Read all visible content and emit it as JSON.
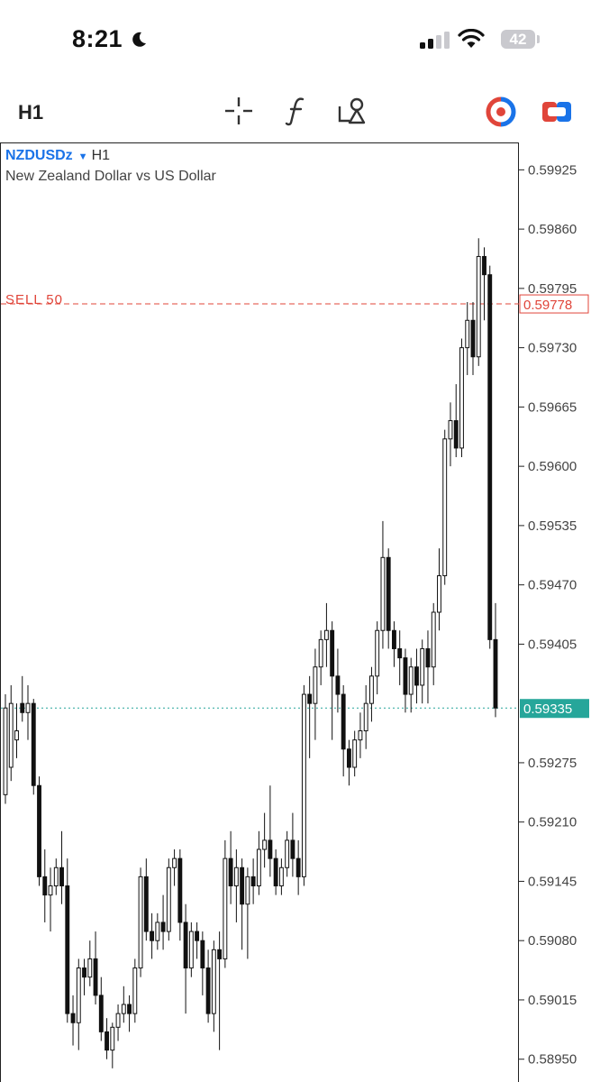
{
  "status_bar": {
    "time": "8:21",
    "battery": "42"
  },
  "toolbar": {
    "timeframe": "H1"
  },
  "chart_header": {
    "symbol": "NZDUSDz",
    "period": "H1",
    "description": "New Zealand Dollar vs US Dollar"
  },
  "order_line": {
    "label": "SELL 50",
    "price": "0.59778"
  },
  "current_price": "0.59335",
  "colors": {
    "sell_line": "#e0453a",
    "bid_line": "#26a69a",
    "symbol": "#1a73e8"
  },
  "chart_data": {
    "type": "candlestick",
    "title": "",
    "xlabel": "",
    "ylabel": "",
    "ylim": [
      0.58925,
      0.59955
    ],
    "y_ticks": [
      "0.59925",
      "0.59860",
      "0.59795",
      "0.59730",
      "0.59665",
      "0.59600",
      "0.59535",
      "0.59470",
      "0.59405",
      "0.59275",
      "0.59210",
      "0.59145",
      "0.59080",
      "0.59015",
      "0.58950"
    ],
    "grid": false,
    "horizontal_lines": [
      {
        "name": "SELL 50",
        "value": 0.59778,
        "style": "dashed"
      },
      {
        "name": "bid",
        "value": 0.59335,
        "style": "dotted"
      }
    ],
    "candles": [
      [
        0.5924,
        0.59335,
        0.5923,
        0.5935
      ],
      [
        0.5927,
        0.5934,
        0.59255,
        0.5936
      ],
      [
        0.593,
        0.5931,
        0.5928,
        0.5934
      ],
      [
        0.5934,
        0.5933,
        0.5932,
        0.5937
      ],
      [
        0.5933,
        0.5934,
        0.593,
        0.5936
      ],
      [
        0.5934,
        0.5925,
        0.5924,
        0.59345
      ],
      [
        0.5925,
        0.5915,
        0.5914,
        0.5926
      ],
      [
        0.5915,
        0.5913,
        0.591,
        0.5918
      ],
      [
        0.5913,
        0.5914,
        0.5909,
        0.5916
      ],
      [
        0.5914,
        0.5916,
        0.5913,
        0.5917
      ],
      [
        0.5916,
        0.5914,
        0.5912,
        0.592
      ],
      [
        0.5914,
        0.59,
        0.5899,
        0.5917
      ],
      [
        0.59,
        0.5899,
        0.58965,
        0.5902
      ],
      [
        0.5899,
        0.5905,
        0.5896,
        0.5906
      ],
      [
        0.5905,
        0.5904,
        0.5902,
        0.5906
      ],
      [
        0.5904,
        0.5906,
        0.5903,
        0.5908
      ],
      [
        0.5906,
        0.5902,
        0.5901,
        0.5909
      ],
      [
        0.5902,
        0.5898,
        0.5897,
        0.5904
      ],
      [
        0.5898,
        0.5896,
        0.5895,
        0.58995
      ],
      [
        0.5896,
        0.58985,
        0.5894,
        0.5899
      ],
      [
        0.58985,
        0.59,
        0.5897,
        0.5901
      ],
      [
        0.59,
        0.5901,
        0.5899,
        0.5903
      ],
      [
        0.5901,
        0.59,
        0.5898,
        0.5902
      ],
      [
        0.59,
        0.5905,
        0.5899,
        0.5906
      ],
      [
        0.5905,
        0.5915,
        0.5904,
        0.5916
      ],
      [
        0.5915,
        0.5909,
        0.5908,
        0.5917
      ],
      [
        0.5909,
        0.5908,
        0.5906,
        0.5911
      ],
      [
        0.5908,
        0.591,
        0.5907,
        0.5911
      ],
      [
        0.591,
        0.5909,
        0.5907,
        0.5913
      ],
      [
        0.5909,
        0.5916,
        0.5908,
        0.5917
      ],
      [
        0.5916,
        0.5917,
        0.5914,
        0.5918
      ],
      [
        0.5917,
        0.591,
        0.5908,
        0.5918
      ],
      [
        0.591,
        0.5905,
        0.59,
        0.5912
      ],
      [
        0.5905,
        0.5909,
        0.5904,
        0.591
      ],
      [
        0.5909,
        0.5908,
        0.5906,
        0.591
      ],
      [
        0.5908,
        0.5905,
        0.5902,
        0.5909
      ],
      [
        0.5905,
        0.59,
        0.5899,
        0.5907
      ],
      [
        0.59,
        0.5907,
        0.5898,
        0.5908
      ],
      [
        0.5907,
        0.5906,
        0.5896,
        0.5909
      ],
      [
        0.5906,
        0.5917,
        0.5905,
        0.5919
      ],
      [
        0.5917,
        0.5914,
        0.5912,
        0.592
      ],
      [
        0.5914,
        0.5916,
        0.591,
        0.5918
      ],
      [
        0.5916,
        0.5912,
        0.5907,
        0.5917
      ],
      [
        0.5912,
        0.5915,
        0.5906,
        0.5916
      ],
      [
        0.5915,
        0.5914,
        0.5912,
        0.5917
      ],
      [
        0.5914,
        0.5918,
        0.5913,
        0.592
      ],
      [
        0.5918,
        0.5919,
        0.5916,
        0.5922
      ],
      [
        0.5919,
        0.5917,
        0.5915,
        0.5925
      ],
      [
        0.5917,
        0.5914,
        0.5913,
        0.5918
      ],
      [
        0.5914,
        0.5916,
        0.5913,
        0.5917
      ],
      [
        0.5916,
        0.5919,
        0.5915,
        0.592
      ],
      [
        0.5919,
        0.5917,
        0.5915,
        0.5922
      ],
      [
        0.5917,
        0.5915,
        0.5913,
        0.5919
      ],
      [
        0.5915,
        0.5935,
        0.5914,
        0.5936
      ],
      [
        0.5935,
        0.5934,
        0.5928,
        0.5937
      ],
      [
        0.5934,
        0.5938,
        0.593,
        0.594
      ],
      [
        0.5938,
        0.5941,
        0.5936,
        0.5942
      ],
      [
        0.5941,
        0.5942,
        0.5938,
        0.5945
      ],
      [
        0.5942,
        0.5937,
        0.593,
        0.5943
      ],
      [
        0.5937,
        0.5935,
        0.5933,
        0.594
      ],
      [
        0.5935,
        0.5929,
        0.5926,
        0.5936
      ],
      [
        0.5929,
        0.5927,
        0.5925,
        0.593
      ],
      [
        0.5927,
        0.593,
        0.5926,
        0.5931
      ],
      [
        0.593,
        0.5931,
        0.5928,
        0.5933
      ],
      [
        0.5931,
        0.5934,
        0.5929,
        0.5936
      ],
      [
        0.5934,
        0.5937,
        0.5932,
        0.5938
      ],
      [
        0.5937,
        0.5942,
        0.5935,
        0.5943
      ],
      [
        0.5942,
        0.595,
        0.594,
        0.5954
      ],
      [
        0.595,
        0.5942,
        0.594,
        0.5951
      ],
      [
        0.5942,
        0.594,
        0.5938,
        0.5943
      ],
      [
        0.594,
        0.5939,
        0.5936,
        0.5942
      ],
      [
        0.5939,
        0.5935,
        0.5933,
        0.594
      ],
      [
        0.5935,
        0.5938,
        0.5933,
        0.5939
      ],
      [
        0.5938,
        0.5936,
        0.5934,
        0.594
      ],
      [
        0.5936,
        0.594,
        0.5934,
        0.5941
      ],
      [
        0.594,
        0.5938,
        0.5934,
        0.5942
      ],
      [
        0.5938,
        0.5944,
        0.5936,
        0.5945
      ],
      [
        0.5944,
        0.5948,
        0.5942,
        0.5951
      ],
      [
        0.5948,
        0.5963,
        0.5947,
        0.5964
      ],
      [
        0.5963,
        0.5965,
        0.596,
        0.5967
      ],
      [
        0.5965,
        0.5962,
        0.5961,
        0.5969
      ],
      [
        0.5962,
        0.5973,
        0.5961,
        0.5974
      ],
      [
        0.5973,
        0.5976,
        0.597,
        0.5978
      ],
      [
        0.5976,
        0.5972,
        0.597,
        0.5978
      ],
      [
        0.5972,
        0.5983,
        0.5971,
        0.5985
      ],
      [
        0.5983,
        0.5981,
        0.5976,
        0.5984
      ],
      [
        0.5981,
        0.5941,
        0.594,
        0.5982
      ],
      [
        0.5941,
        0.59335,
        0.59325,
        0.5945
      ]
    ]
  }
}
